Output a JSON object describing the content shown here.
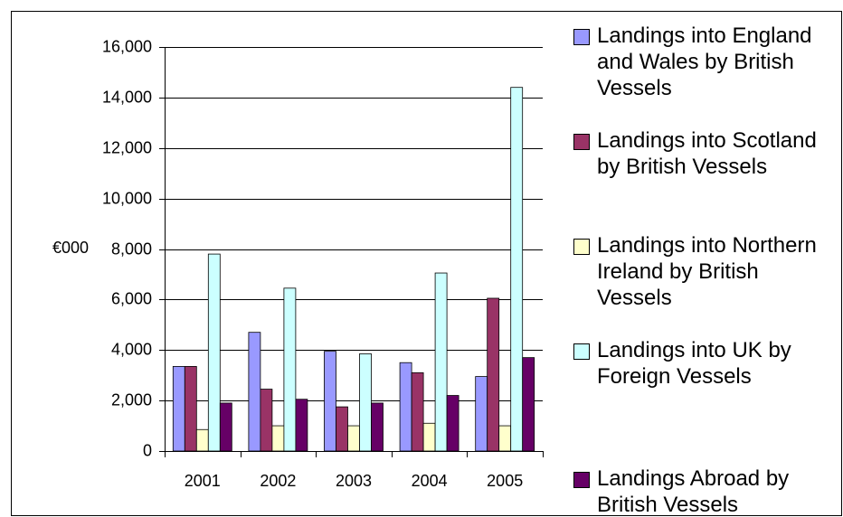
{
  "chart_data": {
    "type": "bar",
    "y_label": "€000",
    "categories": [
      "2001",
      "2002",
      "2003",
      "2004",
      "2005"
    ],
    "series": [
      {
        "name": "Landings into England and Wales by British Vessels",
        "color": "#9999ff",
        "values": [
          3350,
          4700,
          3950,
          3500,
          2950
        ]
      },
      {
        "name": "Landings into Scotland by British Vessels",
        "color": "#993366",
        "values": [
          3350,
          2450,
          1750,
          3100,
          6050
        ]
      },
      {
        "name": "Landings into Northern Ireland by British Vessels",
        "color": "#ffffcc",
        "values": [
          850,
          1000,
          1000,
          1100,
          1000
        ]
      },
      {
        "name": "Landings into UK by Foreign Vessels",
        "color": "#ccffff",
        "values": [
          7800,
          6450,
          3850,
          7050,
          14400
        ]
      },
      {
        "name": "Landings Abroad by British Vessels",
        "color": "#660066",
        "values": [
          1900,
          2050,
          1900,
          2200,
          3700
        ]
      }
    ],
    "ylim": [
      0,
      16000
    ],
    "yticks": [
      0,
      {
        "value": 2000,
        "label": "2,000"
      },
      {
        "value": 4000,
        "label": "4,000"
      },
      {
        "value": 6000,
        "label": "6,000"
      },
      {
        "value": 8000,
        "label": "8,000"
      },
      {
        "value": 10000,
        "label": "10,000"
      },
      {
        "value": 12000,
        "label": "12,000"
      },
      {
        "value": 14000,
        "label": "14,000"
      },
      {
        "value": 16000,
        "label": "16,000"
      }
    ],
    "grid": true,
    "legend": "right"
  }
}
